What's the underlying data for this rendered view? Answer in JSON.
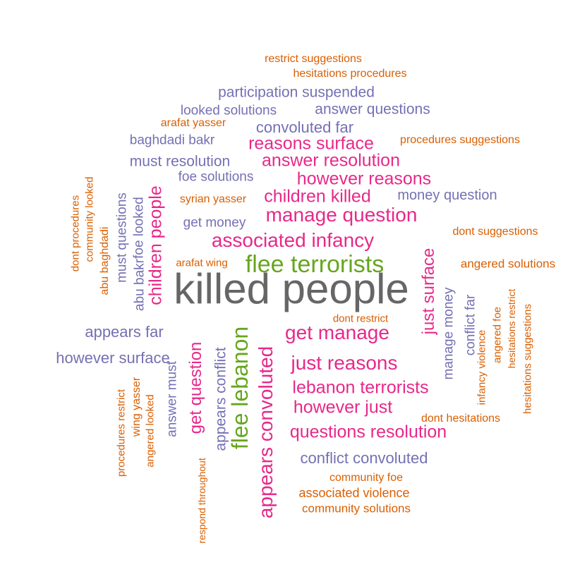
{
  "word_cloud": {
    "words": [
      {
        "text": "killed people",
        "group": "top"
      },
      {
        "text": "flee terrorists",
        "group": "green"
      },
      {
        "text": "flee lebanon",
        "group": "green"
      },
      {
        "text": "manage question",
        "group": "pink"
      },
      {
        "text": "associated infancy",
        "group": "pink"
      },
      {
        "text": "reasons surface",
        "group": "pink"
      },
      {
        "text": "answer resolution",
        "group": "pink"
      },
      {
        "text": "however reasons",
        "group": "pink"
      },
      {
        "text": "children killed",
        "group": "pink"
      },
      {
        "text": "children people",
        "group": "pink"
      },
      {
        "text": "get manage",
        "group": "pink"
      },
      {
        "text": "just reasons",
        "group": "pink"
      },
      {
        "text": "lebanon terrorists",
        "group": "pink"
      },
      {
        "text": "however just",
        "group": "pink"
      },
      {
        "text": "questions resolution",
        "group": "pink"
      },
      {
        "text": "just surface",
        "group": "pink"
      },
      {
        "text": "get question",
        "group": "pink"
      },
      {
        "text": "appears convoluted",
        "group": "pink"
      },
      {
        "text": "participation suspended",
        "group": "purple"
      },
      {
        "text": "looked solutions",
        "group": "purple"
      },
      {
        "text": "answer questions",
        "group": "purple"
      },
      {
        "text": "convoluted far",
        "group": "purple"
      },
      {
        "text": "baghdadi bakr",
        "group": "purple"
      },
      {
        "text": "must resolution",
        "group": "purple"
      },
      {
        "text": "foe solutions",
        "group": "purple"
      },
      {
        "text": "money question",
        "group": "purple"
      },
      {
        "text": "get money",
        "group": "purple"
      },
      {
        "text": "appears far",
        "group": "purple"
      },
      {
        "text": "however surface",
        "group": "purple"
      },
      {
        "text": "conflict convoluted",
        "group": "purple"
      },
      {
        "text": "must questions",
        "group": "purple"
      },
      {
        "text": "foe looked",
        "group": "purple"
      },
      {
        "text": "abu bakr",
        "group": "purple"
      },
      {
        "text": "answer must",
        "group": "purple"
      },
      {
        "text": "appears conflict",
        "group": "purple"
      },
      {
        "text": "manage money",
        "group": "purple"
      },
      {
        "text": "conflict far",
        "group": "purple"
      },
      {
        "text": "restrict suggestions",
        "group": "orange"
      },
      {
        "text": "hesitations procedures",
        "group": "orange"
      },
      {
        "text": "arafat yasser",
        "group": "orange"
      },
      {
        "text": "procedures suggestions",
        "group": "orange"
      },
      {
        "text": "syrian yasser",
        "group": "orange"
      },
      {
        "text": "dont suggestions",
        "group": "orange"
      },
      {
        "text": "arafat wing",
        "group": "orange"
      },
      {
        "text": "angered solutions",
        "group": "orange"
      },
      {
        "text": "dont restrict",
        "group": "orange"
      },
      {
        "text": "dont hesitations",
        "group": "orange"
      },
      {
        "text": "community foe",
        "group": "orange"
      },
      {
        "text": "associated violence",
        "group": "orange"
      },
      {
        "text": "community solutions",
        "group": "orange"
      },
      {
        "text": "dont procedures",
        "group": "orange"
      },
      {
        "text": "community looked",
        "group": "orange"
      },
      {
        "text": "abu baghdadi",
        "group": "orange"
      },
      {
        "text": "procedures restrict",
        "group": "orange"
      },
      {
        "text": "wing yasser",
        "group": "orange"
      },
      {
        "text": "angered looked",
        "group": "orange"
      },
      {
        "text": "respond throughout",
        "group": "orange"
      },
      {
        "text": "infancy violence",
        "group": "orange"
      },
      {
        "text": "angered foe",
        "group": "orange"
      },
      {
        "text": "hesitations restrict",
        "group": "orange"
      },
      {
        "text": "hesitations suggestions",
        "group": "orange"
      }
    ],
    "colors": {
      "top": "#666666",
      "green": "#66a61e",
      "pink": "#e7298a",
      "purple": "#7570b3",
      "orange": "#d95f02"
    }
  }
}
